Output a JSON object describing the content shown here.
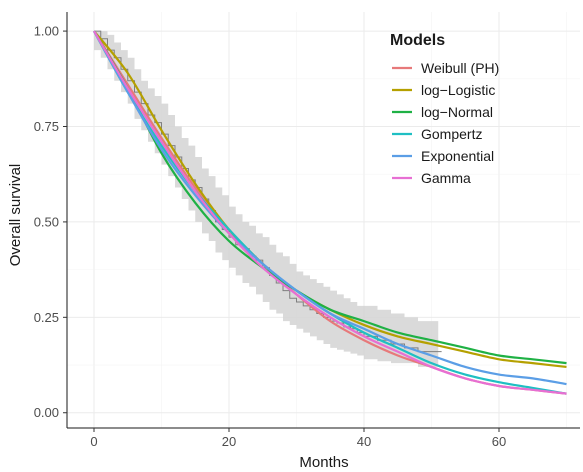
{
  "chart_data": {
    "type": "line",
    "title": "",
    "xlabel": "Months",
    "ylabel": "Overall survival",
    "xlim": [
      -4,
      72
    ],
    "ylim": [
      -0.04,
      1.05
    ],
    "x_ticks": [
      0,
      20,
      40,
      60
    ],
    "y_ticks": [
      0.0,
      0.25,
      0.5,
      0.75,
      1.0
    ],
    "y_tick_labels": [
      "0.00",
      "0.25",
      "0.50",
      "0.75",
      "1.00"
    ],
    "grid": true,
    "legend": {
      "title": "Models",
      "placement": "top-right"
    },
    "series": [
      {
        "name": "Weibull (PH)",
        "color": "#e7797a",
        "x": [
          0,
          5,
          10,
          15,
          20,
          25,
          30,
          35,
          40,
          45,
          50,
          55,
          60,
          65,
          70
        ],
        "values": [
          1.0,
          0.86,
          0.72,
          0.59,
          0.48,
          0.39,
          0.31,
          0.24,
          0.19,
          0.15,
          0.12,
          0.09,
          0.07,
          0.06,
          0.05
        ]
      },
      {
        "name": "log−Logistic",
        "color": "#b5a000",
        "x": [
          0,
          5,
          10,
          15,
          20,
          25,
          30,
          35,
          40,
          45,
          50,
          55,
          60,
          65,
          70
        ],
        "values": [
          1.0,
          0.89,
          0.74,
          0.6,
          0.48,
          0.39,
          0.32,
          0.27,
          0.23,
          0.2,
          0.18,
          0.16,
          0.14,
          0.13,
          0.12
        ]
      },
      {
        "name": "log−Normal",
        "color": "#1fb145",
        "x": [
          0,
          5,
          10,
          15,
          20,
          25,
          30,
          35,
          40,
          45,
          50,
          55,
          60,
          65,
          70
        ],
        "values": [
          1.0,
          0.85,
          0.68,
          0.55,
          0.45,
          0.38,
          0.32,
          0.27,
          0.24,
          0.21,
          0.19,
          0.17,
          0.15,
          0.14,
          0.13
        ]
      },
      {
        "name": "Gompertz",
        "color": "#1fbfc3",
        "x": [
          0,
          5,
          10,
          15,
          20,
          25,
          30,
          35,
          40,
          45,
          50,
          55,
          60,
          65,
          70
        ],
        "values": [
          1.0,
          0.84,
          0.7,
          0.58,
          0.48,
          0.39,
          0.32,
          0.26,
          0.21,
          0.17,
          0.13,
          0.1,
          0.08,
          0.065,
          0.05
        ]
      },
      {
        "name": "Exponential",
        "color": "#5b9ee6",
        "x": [
          0,
          5,
          10,
          15,
          20,
          25,
          30,
          35,
          40,
          45,
          50,
          55,
          60,
          65,
          70
        ],
        "values": [
          1.0,
          0.84,
          0.69,
          0.57,
          0.47,
          0.39,
          0.32,
          0.26,
          0.22,
          0.18,
          0.15,
          0.12,
          0.1,
          0.09,
          0.075
        ]
      },
      {
        "name": "Gamma",
        "color": "#e76fd3",
        "x": [
          0,
          5,
          10,
          15,
          20,
          25,
          30,
          35,
          40,
          45,
          50,
          55,
          60,
          65,
          70
        ],
        "values": [
          1.0,
          0.85,
          0.71,
          0.58,
          0.47,
          0.38,
          0.31,
          0.25,
          0.2,
          0.16,
          0.12,
          0.09,
          0.07,
          0.06,
          0.05
        ]
      }
    ],
    "kaplan_meier": {
      "color": "#7f7f7f",
      "x": [
        0,
        1,
        2,
        3,
        4,
        5,
        6,
        7,
        8,
        9,
        10,
        11,
        12,
        13,
        14,
        15,
        16,
        17,
        18,
        19,
        20,
        21,
        22,
        23,
        24,
        25,
        26,
        27,
        28,
        29,
        30,
        31,
        32,
        33,
        34,
        35,
        36,
        37,
        38,
        39,
        40,
        42,
        44,
        46,
        48,
        51
      ],
      "values": [
        1.0,
        0.98,
        0.95,
        0.93,
        0.9,
        0.87,
        0.84,
        0.81,
        0.78,
        0.76,
        0.73,
        0.7,
        0.67,
        0.64,
        0.61,
        0.59,
        0.56,
        0.53,
        0.5,
        0.48,
        0.46,
        0.44,
        0.43,
        0.41,
        0.4,
        0.38,
        0.36,
        0.34,
        0.32,
        0.3,
        0.29,
        0.28,
        0.27,
        0.26,
        0.25,
        0.24,
        0.235,
        0.225,
        0.22,
        0.21,
        0.2,
        0.19,
        0.18,
        0.17,
        0.16,
        0.16
      ],
      "lower": [
        0.95,
        0.93,
        0.9,
        0.87,
        0.84,
        0.81,
        0.77,
        0.74,
        0.71,
        0.68,
        0.65,
        0.62,
        0.59,
        0.56,
        0.53,
        0.5,
        0.47,
        0.45,
        0.42,
        0.4,
        0.38,
        0.36,
        0.34,
        0.33,
        0.31,
        0.29,
        0.27,
        0.26,
        0.24,
        0.23,
        0.22,
        0.21,
        0.2,
        0.19,
        0.18,
        0.17,
        0.165,
        0.16,
        0.155,
        0.15,
        0.14,
        0.135,
        0.13,
        0.13,
        0.12,
        0.12
      ],
      "upper": [
        1.0,
        1.0,
        0.99,
        0.97,
        0.95,
        0.93,
        0.9,
        0.87,
        0.85,
        0.83,
        0.81,
        0.78,
        0.75,
        0.72,
        0.7,
        0.67,
        0.64,
        0.62,
        0.59,
        0.57,
        0.54,
        0.52,
        0.5,
        0.49,
        0.47,
        0.46,
        0.44,
        0.42,
        0.41,
        0.39,
        0.37,
        0.36,
        0.35,
        0.34,
        0.33,
        0.32,
        0.31,
        0.3,
        0.29,
        0.28,
        0.28,
        0.27,
        0.26,
        0.25,
        0.24,
        0.24
      ]
    }
  }
}
